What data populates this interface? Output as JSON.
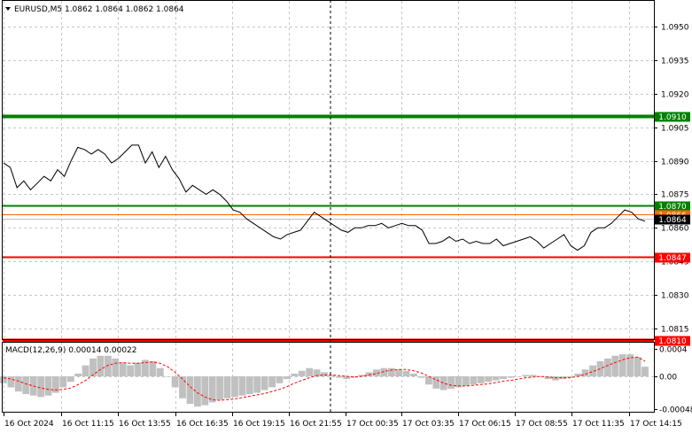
{
  "colors": {
    "background": "#ffffff",
    "grid": "#c8c8c8",
    "price_line": "#000000",
    "support_color": "#ff0000",
    "resistance_color": "#008000",
    "bid_line": "#c0c0c0",
    "macd_hist": "#c0c0c0",
    "signal_line": "#ff0000"
  },
  "header": {
    "arrow_icon": "triangle-down-icon",
    "title": "EURUSD,M5  1.0862 1.0864 1.0862 1.0864"
  },
  "chart_data": [
    {
      "type": "line",
      "title": "EURUSD,M5  1.0862 1.0864 1.0862 1.0864",
      "ylim": [
        1.081,
        1.0962
      ],
      "yticks": [
        1.095,
        1.0935,
        1.092,
        1.0905,
        1.089,
        1.0875,
        1.086,
        1.0845,
        1.083,
        1.0815
      ],
      "ytick_labels": [
        "1.0950",
        "1.0935",
        "1.0920",
        "1.0905",
        "1.0890",
        "1.0875",
        "1.0860",
        "1.0845",
        "1.0830",
        "1.0815"
      ],
      "x_labels": [
        "16 Oct 2024",
        "16 Oct 11:15",
        "16 Oct 13:55",
        "16 Oct 16:35",
        "16 Oct 19:15",
        "16 Oct 21:55",
        "17 Oct 00:35",
        "17 Oct 03:35",
        "17 Oct 06:15",
        "17 Oct 08:55",
        "17 Oct 11:35",
        "17 Oct 14:15"
      ],
      "grid": true,
      "cursor_x_label": "16 Oct 21:55",
      "series": [
        {
          "values": [
            1.0889,
            1.0887,
            1.0878,
            1.0881,
            1.0877,
            1.088,
            1.0883,
            1.0881,
            1.0886,
            1.0883,
            1.089,
            1.0896,
            1.0895,
            1.0893,
            1.0895,
            1.0893,
            1.0889,
            1.0891,
            1.0894,
            1.0897,
            1.0897,
            1.0889,
            1.0894,
            1.0887,
            1.0892,
            1.0886,
            1.0882,
            1.0876,
            1.0879,
            1.0877,
            1.0875,
            1.0877,
            1.0875,
            1.0872,
            1.0868,
            1.0867,
            1.0864,
            1.0862,
            1.086,
            1.0858,
            1.0856,
            1.0855,
            1.0857,
            1.0858,
            1.0859,
            1.0863,
            1.0867,
            1.0865,
            1.0863,
            1.0861,
            1.0859,
            1.0858,
            1.086,
            1.086,
            1.0861,
            1.0861,
            1.0862,
            1.086,
            1.0861,
            1.0862,
            1.0861,
            1.0861,
            1.0859,
            1.0853,
            1.0853,
            1.0854,
            1.0856,
            1.0854,
            1.0855,
            1.0853,
            1.0854,
            1.0853,
            1.0853,
            1.0855,
            1.0852,
            1.0853,
            1.0854,
            1.0855,
            1.0856,
            1.0854,
            1.0851,
            1.0853,
            1.0855,
            1.0857,
            1.0852,
            1.085,
            1.0852,
            1.0858,
            1.086,
            1.086,
            1.0862,
            1.0865,
            1.0868,
            1.0867,
            1.0864,
            1.0863
          ]
        }
      ],
      "levels": [
        {
          "name": "resistance_high",
          "value": 1.091,
          "label": "1.0910",
          "color": "#008000",
          "width": 4
        },
        {
          "name": "resistance_low",
          "value": 1.087,
          "label": "1.0870",
          "color": "#008000",
          "width": 2
        },
        {
          "name": "ask",
          "value": 1.0866,
          "label": "1.0866",
          "color": "#ff6a00",
          "width": 1
        },
        {
          "name": "bid",
          "value": 1.0864,
          "label": "1.0864",
          "color": "#c0c0c0",
          "width": 1
        },
        {
          "name": "support_high",
          "value": 1.0847,
          "label": "1.0847",
          "color": "#ff0000",
          "width": 2
        },
        {
          "name": "support_low",
          "value": 1.081,
          "label": "1.0810",
          "color": "#ff0000",
          "width": 4
        }
      ]
    },
    {
      "type": "bar",
      "title": "MACD(12,26,9) 0.00014 0.00022",
      "ylim": [
        -0.00048,
        0.0004
      ],
      "yticks": [
        0.0004,
        0.0,
        -0.00048
      ],
      "ytick_labels": [
        "0.0004",
        "0.00",
        "-0.00048"
      ],
      "series": [
        {
          "name": "MACD",
          "values": [
            -0.0001,
            -0.00016,
            -0.00022,
            -0.00026,
            -0.00028,
            -0.0003,
            -0.00028,
            -0.00024,
            -0.00016,
            -8e-05,
            4e-05,
            0.00016,
            0.00026,
            0.0003,
            0.0003,
            0.00026,
            0.0002,
            0.00016,
            0.0002,
            0.00024,
            0.00022,
            0.00012,
            0.0,
            -0.00016,
            -0.00032,
            -0.0004,
            -0.00044,
            -0.00042,
            -0.00038,
            -0.00034,
            -0.00032,
            -0.0003,
            -0.00028,
            -0.00026,
            -0.00024,
            -0.0002,
            -0.00016,
            -0.0001,
            -4e-05,
            4e-05,
            8e-05,
            0.00012,
            0.0001,
            6e-05,
            2e-05,
            -2e-05,
            -4e-05,
            -2e-05,
            2e-05,
            6e-05,
            0.0001,
            0.00012,
            0.00012,
            0.0001,
            8e-05,
            4e-05,
            -2e-05,
            -0.00012,
            -0.00018,
            -0.0002,
            -0.00018,
            -0.00016,
            -0.00014,
            -0.00012,
            -0.0001,
            -8e-05,
            -6e-05,
            -4e-05,
            -2e-05,
            0.0,
            2e-05,
            2e-05,
            0.0,
            -4e-05,
            -6e-05,
            -4e-05,
            -2e-05,
            4e-05,
            0.0001,
            0.00016,
            0.00022,
            0.00026,
            0.0003,
            0.00032,
            0.00032,
            0.00028,
            0.00014
          ]
        },
        {
          "name": "Signal",
          "values": [
            -2e-05,
            -4e-05,
            -7e-05,
            -0.00011,
            -0.00014,
            -0.00017,
            -0.00019,
            -0.0002,
            -0.00019,
            -0.00017,
            -0.00012,
            -6e-05,
            2e-05,
            0.0001,
            0.00016,
            0.00019,
            0.0002,
            0.00019,
            0.00019,
            0.0002,
            0.00021,
            0.00019,
            0.00014,
            6e-05,
            -4e-05,
            -0.00015,
            -0.00024,
            -0.0003,
            -0.00034,
            -0.00035,
            -0.00034,
            -0.00033,
            -0.00031,
            -0.00029,
            -0.00027,
            -0.00025,
            -0.00022,
            -0.00019,
            -0.00015,
            -0.0001,
            -6e-05,
            -2e-05,
            1e-05,
            2e-05,
            2e-05,
            1e-05,
            0.0,
            -1e-05,
            0.0,
            2e-05,
            4e-05,
            7e-05,
            9e-05,
            0.0001,
            0.0001,
            8e-05,
            5e-05,
            0.0,
            -5e-05,
            -0.0001,
            -0.00013,
            -0.00014,
            -0.00014,
            -0.00013,
            -0.00012,
            -0.00011,
            -9e-05,
            -7e-05,
            -6e-05,
            -4e-05,
            -2e-05,
            -1e-05,
            0.0,
            -1e-05,
            -2e-05,
            -2e-05,
            -2e-05,
            0.0,
            3e-05,
            7e-05,
            0.00011,
            0.00016,
            0.0002,
            0.00024,
            0.00027,
            0.00028,
            0.00022
          ]
        }
      ]
    }
  ]
}
